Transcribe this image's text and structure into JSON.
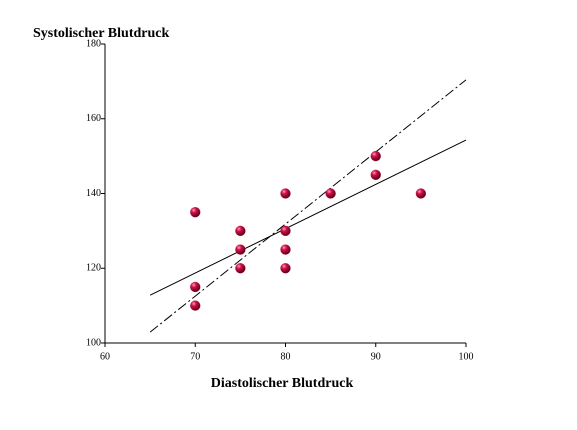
{
  "chart_data": {
    "type": "scatter",
    "x_label": "Diastolischer Blutdruck",
    "y_label": "Systolischer Blutdruck",
    "x": [
      70,
      70,
      70,
      75,
      75,
      75,
      80,
      80,
      80,
      80,
      85,
      90,
      90,
      95
    ],
    "values": [
      135,
      115,
      110,
      130,
      125,
      120,
      140,
      130,
      125,
      120,
      140,
      150,
      145,
      140
    ],
    "color": "#c0103c",
    "lines": [
      {
        "x": [
          65,
          100
        ],
        "values": [
          112.8,
          154.3
        ],
        "color": "#000000",
        "style": "solid"
      },
      {
        "x": [
          65,
          100
        ],
        "values": [
          102.9,
          170.4
        ],
        "color": "#000000",
        "style": "dashdot"
      }
    ],
    "xlim": [
      60,
      100
    ],
    "xticks": [
      60,
      70,
      80,
      90,
      100
    ],
    "ylim": [
      100,
      180
    ],
    "yticks": [
      100,
      120,
      140,
      160,
      180
    ],
    "grid": false
  }
}
